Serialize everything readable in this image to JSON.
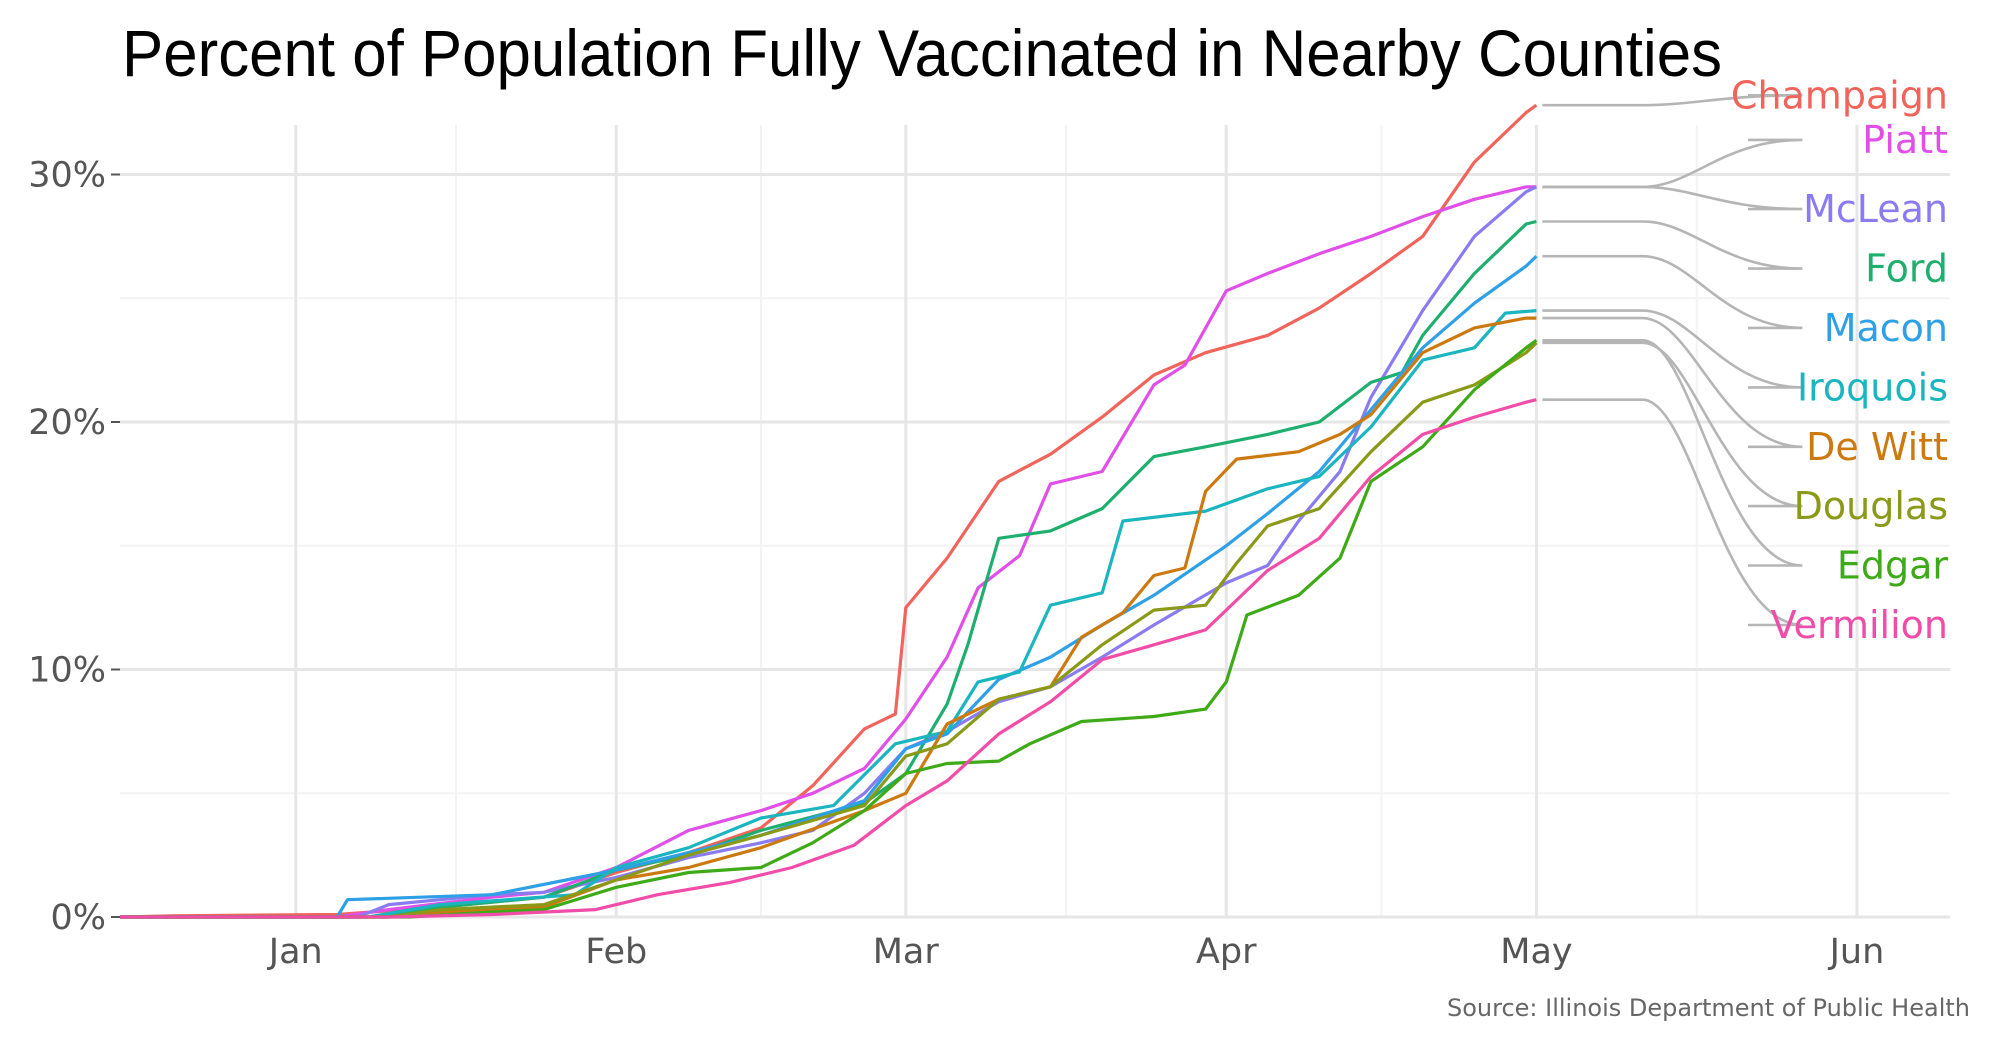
{
  "chart_data": {
    "type": "line",
    "title": "Percent of Population Fully Vaccinated in Nearby Counties",
    "source": "Source: Illinois Department of Public Health",
    "xlabel": "",
    "ylabel": "",
    "x_range": [
      "2020-12-15",
      "2021-06-10"
    ],
    "x_ticks": [
      {
        "date": "2021-01-01",
        "label": "Jan"
      },
      {
        "date": "2021-02-01",
        "label": "Feb"
      },
      {
        "date": "2021-03-01",
        "label": "Mar"
      },
      {
        "date": "2021-04-01",
        "label": "Apr"
      },
      {
        "date": "2021-05-01",
        "label": "May"
      },
      {
        "date": "2021-06-01",
        "label": "Jun"
      }
    ],
    "ylim": [
      0,
      32
    ],
    "y_ticks": [
      {
        "value": 0,
        "label": "0%"
      },
      {
        "value": 10,
        "label": "10%"
      },
      {
        "value": 20,
        "label": "20%"
      },
      {
        "value": 30,
        "label": "30%"
      }
    ],
    "grid": true,
    "legend": "direct labels at right end of each line",
    "series": [
      {
        "name": "Champaign",
        "color": "#F0645C",
        "label_value": 33.2,
        "points": [
          [
            "2020-12-15",
            0
          ],
          [
            "2020-12-20",
            0.05
          ],
          [
            "2021-01-05",
            0.1
          ],
          [
            "2021-01-15",
            0.4
          ],
          [
            "2021-01-25",
            0.8
          ],
          [
            "2021-02-01",
            1.8
          ],
          [
            "2021-02-08",
            2.6
          ],
          [
            "2021-02-15",
            3.6
          ],
          [
            "2021-02-20",
            5.3
          ],
          [
            "2021-02-25",
            7.6
          ],
          [
            "2021-02-28",
            8.2
          ],
          [
            "2021-03-01",
            12.5
          ],
          [
            "2021-03-05",
            14.5
          ],
          [
            "2021-03-10",
            17.6
          ],
          [
            "2021-03-15",
            18.7
          ],
          [
            "2021-03-20",
            20.2
          ],
          [
            "2021-03-25",
            21.9
          ],
          [
            "2021-03-30",
            22.8
          ],
          [
            "2021-04-05",
            23.5
          ],
          [
            "2021-04-10",
            24.6
          ],
          [
            "2021-04-15",
            26.0
          ],
          [
            "2021-04-20",
            27.5
          ],
          [
            "2021-04-25",
            30.5
          ],
          [
            "2021-04-30",
            32.5
          ],
          [
            "2021-05-01",
            32.8
          ]
        ]
      },
      {
        "name": "Piatt",
        "color": "#E050E8",
        "label_value": 31.4,
        "points": [
          [
            "2020-12-15",
            0
          ],
          [
            "2021-01-05",
            0
          ],
          [
            "2021-01-10",
            0.3
          ],
          [
            "2021-01-20",
            0.8
          ],
          [
            "2021-01-25",
            1.0
          ],
          [
            "2021-02-01",
            2.0
          ],
          [
            "2021-02-08",
            3.5
          ],
          [
            "2021-02-15",
            4.3
          ],
          [
            "2021-02-20",
            5.0
          ],
          [
            "2021-02-25",
            6.0
          ],
          [
            "2021-03-01",
            8.0
          ],
          [
            "2021-03-05",
            10.5
          ],
          [
            "2021-03-08",
            13.3
          ],
          [
            "2021-03-12",
            14.6
          ],
          [
            "2021-03-15",
            17.5
          ],
          [
            "2021-03-20",
            18.0
          ],
          [
            "2021-03-25",
            21.5
          ],
          [
            "2021-03-28",
            22.3
          ],
          [
            "2021-04-01",
            25.3
          ],
          [
            "2021-04-05",
            26.0
          ],
          [
            "2021-04-10",
            26.8
          ],
          [
            "2021-04-15",
            27.5
          ],
          [
            "2021-04-20",
            28.3
          ],
          [
            "2021-04-25",
            29.0
          ],
          [
            "2021-04-30",
            29.5
          ],
          [
            "2021-05-01",
            29.5
          ]
        ]
      },
      {
        "name": "McLean",
        "color": "#8A7CF0",
        "label_value": 28.6,
        "points": [
          [
            "2020-12-15",
            0
          ],
          [
            "2021-01-07",
            0
          ],
          [
            "2021-01-10",
            0.5
          ],
          [
            "2021-01-20",
            0.9
          ],
          [
            "2021-01-25",
            1.0
          ],
          [
            "2021-02-01",
            1.6
          ],
          [
            "2021-02-08",
            2.4
          ],
          [
            "2021-02-15",
            3.0
          ],
          [
            "2021-02-20",
            3.5
          ],
          [
            "2021-02-25",
            5.0
          ],
          [
            "2021-03-01",
            6.8
          ],
          [
            "2021-03-05",
            7.5
          ],
          [
            "2021-03-10",
            8.7
          ],
          [
            "2021-03-15",
            9.3
          ],
          [
            "2021-03-20",
            10.5
          ],
          [
            "2021-03-25",
            11.8
          ],
          [
            "2021-04-01",
            13.5
          ],
          [
            "2021-04-05",
            14.2
          ],
          [
            "2021-04-08",
            16.0
          ],
          [
            "2021-04-12",
            18.0
          ],
          [
            "2021-04-15",
            21.0
          ],
          [
            "2021-04-20",
            24.5
          ],
          [
            "2021-04-25",
            27.5
          ],
          [
            "2021-04-30",
            29.3
          ],
          [
            "2021-05-01",
            29.5
          ]
        ]
      },
      {
        "name": "Ford",
        "color": "#1EAF6E",
        "label_value": 26.2,
        "points": [
          [
            "2020-12-15",
            0
          ],
          [
            "2021-01-08",
            0
          ],
          [
            "2021-01-15",
            0.4
          ],
          [
            "2021-01-25",
            0.8
          ],
          [
            "2021-02-01",
            1.9
          ],
          [
            "2021-02-08",
            2.5
          ],
          [
            "2021-02-15",
            3.5
          ],
          [
            "2021-02-25",
            4.6
          ],
          [
            "2021-03-01",
            5.8
          ],
          [
            "2021-03-05",
            8.6
          ],
          [
            "2021-03-07",
            11.0
          ],
          [
            "2021-03-10",
            15.3
          ],
          [
            "2021-03-15",
            15.6
          ],
          [
            "2021-03-20",
            16.5
          ],
          [
            "2021-03-25",
            18.6
          ],
          [
            "2021-03-30",
            19.0
          ],
          [
            "2021-04-05",
            19.5
          ],
          [
            "2021-04-10",
            20.0
          ],
          [
            "2021-04-15",
            21.6
          ],
          [
            "2021-04-18",
            22.0
          ],
          [
            "2021-04-20",
            23.5
          ],
          [
            "2021-04-25",
            26.0
          ],
          [
            "2021-04-30",
            28.0
          ],
          [
            "2021-05-01",
            28.1
          ]
        ]
      },
      {
        "name": "Macon",
        "color": "#2EA0E6",
        "label_value": 23.8,
        "points": [
          [
            "2020-12-15",
            0
          ],
          [
            "2021-01-05",
            0
          ],
          [
            "2021-01-06",
            0.7
          ],
          [
            "2021-01-20",
            0.9
          ],
          [
            "2021-02-01",
            1.9
          ],
          [
            "2021-02-08",
            2.6
          ],
          [
            "2021-02-15",
            3.3
          ],
          [
            "2021-02-25",
            4.7
          ],
          [
            "2021-03-01",
            6.8
          ],
          [
            "2021-03-05",
            7.4
          ],
          [
            "2021-03-10",
            9.6
          ],
          [
            "2021-03-15",
            10.5
          ],
          [
            "2021-03-20",
            11.8
          ],
          [
            "2021-03-25",
            13.0
          ],
          [
            "2021-04-01",
            15.0
          ],
          [
            "2021-04-05",
            16.3
          ],
          [
            "2021-04-10",
            18.0
          ],
          [
            "2021-04-15",
            20.5
          ],
          [
            "2021-04-20",
            23.0
          ],
          [
            "2021-04-25",
            24.8
          ],
          [
            "2021-04-30",
            26.3
          ],
          [
            "2021-05-01",
            26.7
          ]
        ]
      },
      {
        "name": "Iroquois",
        "color": "#1BB5C0",
        "label_value": 21.4,
        "points": [
          [
            "2020-12-15",
            0
          ],
          [
            "2021-01-08",
            0
          ],
          [
            "2021-01-15",
            0.5
          ],
          [
            "2021-01-28",
            0.9
          ],
          [
            "2021-02-01",
            2.0
          ],
          [
            "2021-02-08",
            2.8
          ],
          [
            "2021-02-15",
            4.0
          ],
          [
            "2021-02-22",
            4.5
          ],
          [
            "2021-02-28",
            7.0
          ],
          [
            "2021-03-05",
            7.5
          ],
          [
            "2021-03-08",
            9.5
          ],
          [
            "2021-03-12",
            9.9
          ],
          [
            "2021-03-15",
            12.6
          ],
          [
            "2021-03-20",
            13.1
          ],
          [
            "2021-03-22",
            16.0
          ],
          [
            "2021-03-30",
            16.4
          ],
          [
            "2021-04-05",
            17.3
          ],
          [
            "2021-04-10",
            17.8
          ],
          [
            "2021-04-15",
            19.8
          ],
          [
            "2021-04-20",
            22.5
          ],
          [
            "2021-04-25",
            23.0
          ],
          [
            "2021-04-28",
            24.4
          ],
          [
            "2021-05-01",
            24.5
          ]
        ]
      },
      {
        "name": "De Witt",
        "color": "#CC7A10",
        "label_value": 19.0,
        "points": [
          [
            "2020-12-15",
            0
          ],
          [
            "2021-01-10",
            0
          ],
          [
            "2021-01-15",
            0.2
          ],
          [
            "2021-01-25",
            0.4
          ],
          [
            "2021-02-01",
            1.5
          ],
          [
            "2021-02-08",
            2.0
          ],
          [
            "2021-02-15",
            2.8
          ],
          [
            "2021-02-25",
            4.3
          ],
          [
            "2021-03-01",
            5.0
          ],
          [
            "2021-03-05",
            7.8
          ],
          [
            "2021-03-10",
            8.8
          ],
          [
            "2021-03-15",
            9.3
          ],
          [
            "2021-03-18",
            11.3
          ],
          [
            "2021-03-22",
            12.3
          ],
          [
            "2021-03-25",
            13.8
          ],
          [
            "2021-03-28",
            14.1
          ],
          [
            "2021-03-30",
            17.2
          ],
          [
            "2021-04-02",
            18.5
          ],
          [
            "2021-04-08",
            18.8
          ],
          [
            "2021-04-12",
            19.5
          ],
          [
            "2021-04-15",
            20.3
          ],
          [
            "2021-04-20",
            22.8
          ],
          [
            "2021-04-25",
            23.8
          ],
          [
            "2021-04-30",
            24.2
          ],
          [
            "2021-05-01",
            24.2
          ]
        ]
      },
      {
        "name": "Douglas",
        "color": "#8A9A18",
        "label_value": 16.6,
        "points": [
          [
            "2020-12-15",
            0
          ],
          [
            "2021-01-10",
            0
          ],
          [
            "2021-01-15",
            0.3
          ],
          [
            "2021-01-25",
            0.5
          ],
          [
            "2021-02-01",
            1.5
          ],
          [
            "2021-02-08",
            2.5
          ],
          [
            "2021-02-15",
            3.3
          ],
          [
            "2021-02-25",
            4.5
          ],
          [
            "2021-03-01",
            6.5
          ],
          [
            "2021-03-05",
            7.0
          ],
          [
            "2021-03-10",
            8.8
          ],
          [
            "2021-03-15",
            9.3
          ],
          [
            "2021-03-20",
            11.0
          ],
          [
            "2021-03-25",
            12.4
          ],
          [
            "2021-03-30",
            12.6
          ],
          [
            "2021-04-02",
            14.3
          ],
          [
            "2021-04-05",
            15.8
          ],
          [
            "2021-04-10",
            16.5
          ],
          [
            "2021-04-15",
            18.8
          ],
          [
            "2021-04-20",
            20.8
          ],
          [
            "2021-04-25",
            21.5
          ],
          [
            "2021-04-30",
            22.8
          ],
          [
            "2021-05-01",
            23.2
          ]
        ]
      },
      {
        "name": "Edgar",
        "color": "#3EAA18",
        "label_value": 14.2,
        "points": [
          [
            "2020-12-15",
            0
          ],
          [
            "2021-01-12",
            0
          ],
          [
            "2021-01-20",
            0.2
          ],
          [
            "2021-01-25",
            0.3
          ],
          [
            "2021-02-01",
            1.2
          ],
          [
            "2021-02-08",
            1.8
          ],
          [
            "2021-02-15",
            2.0
          ],
          [
            "2021-02-20",
            3.0
          ],
          [
            "2021-02-25",
            4.3
          ],
          [
            "2021-03-01",
            5.8
          ],
          [
            "2021-03-05",
            6.2
          ],
          [
            "2021-03-10",
            6.3
          ],
          [
            "2021-03-13",
            7.0
          ],
          [
            "2021-03-18",
            7.9
          ],
          [
            "2021-03-25",
            8.1
          ],
          [
            "2021-03-30",
            8.4
          ],
          [
            "2021-04-01",
            9.5
          ],
          [
            "2021-04-03",
            12.2
          ],
          [
            "2021-04-08",
            13.0
          ],
          [
            "2021-04-12",
            14.5
          ],
          [
            "2021-04-15",
            17.6
          ],
          [
            "2021-04-20",
            19.0
          ],
          [
            "2021-04-25",
            21.3
          ],
          [
            "2021-04-30",
            23.0
          ],
          [
            "2021-05-01",
            23.3
          ]
        ]
      },
      {
        "name": "Vermilion",
        "color": "#F04CA8",
        "label_value": 11.8,
        "points": [
          [
            "2020-12-15",
            0
          ],
          [
            "2021-01-10",
            0
          ],
          [
            "2021-01-20",
            0.1
          ],
          [
            "2021-01-30",
            0.3
          ],
          [
            "2021-02-05",
            0.9
          ],
          [
            "2021-02-12",
            1.4
          ],
          [
            "2021-02-18",
            2.0
          ],
          [
            "2021-02-24",
            2.9
          ],
          [
            "2021-03-01",
            4.5
          ],
          [
            "2021-03-05",
            5.5
          ],
          [
            "2021-03-10",
            7.4
          ],
          [
            "2021-03-15",
            8.7
          ],
          [
            "2021-03-20",
            10.4
          ],
          [
            "2021-03-25",
            11.0
          ],
          [
            "2021-03-30",
            11.6
          ],
          [
            "2021-04-05",
            14.0
          ],
          [
            "2021-04-10",
            15.3
          ],
          [
            "2021-04-15",
            17.8
          ],
          [
            "2021-04-20",
            19.5
          ],
          [
            "2021-04-25",
            20.2
          ],
          [
            "2021-04-30",
            20.8
          ],
          [
            "2021-05-01",
            20.9
          ]
        ]
      }
    ]
  }
}
